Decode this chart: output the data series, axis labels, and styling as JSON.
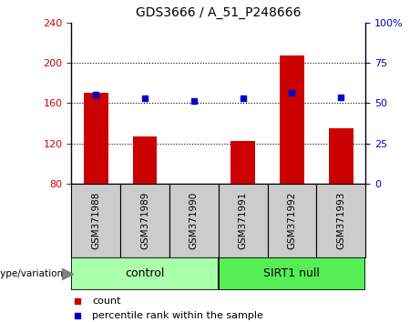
{
  "title": "GDS3666 / A_51_P248666",
  "samples": [
    "GSM371988",
    "GSM371989",
    "GSM371990",
    "GSM371991",
    "GSM371992",
    "GSM371993"
  ],
  "bar_values": [
    170,
    127,
    80,
    122,
    207,
    135
  ],
  "dot_values": [
    168,
    165,
    162,
    165,
    170,
    166
  ],
  "ylim_left": [
    80,
    240
  ],
  "ylim_right": [
    0,
    100
  ],
  "yticks_left": [
    80,
    120,
    160,
    200,
    240
  ],
  "yticks_right": [
    0,
    25,
    50,
    75,
    100
  ],
  "bar_color": "#cc0000",
  "dot_color": "#0000cc",
  "control_label": "control",
  "sirt1_label": "SIRT1 null",
  "genotype_label": "genotype/variation",
  "legend_count": "count",
  "legend_percentile": "percentile rank within the sample",
  "control_color": "#aaffaa",
  "sirt1_color": "#55ee55",
  "xlabel_area_color": "#cccccc",
  "bar_width": 0.5,
  "figsize": [
    4.61,
    3.54
  ],
  "dpi": 100
}
